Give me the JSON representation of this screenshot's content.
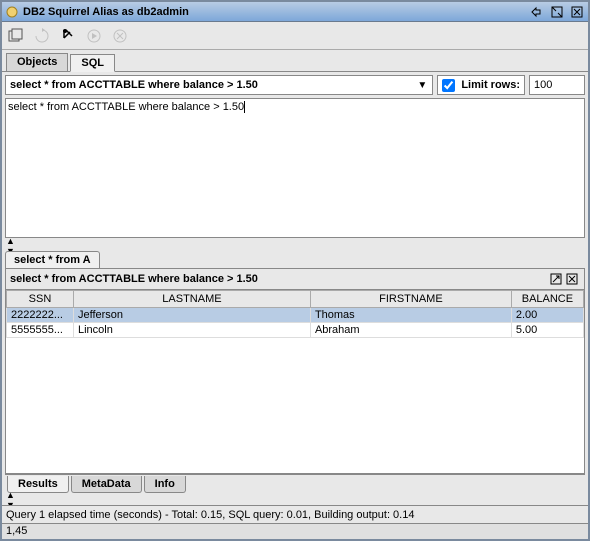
{
  "colors": {
    "title_gradient_top": "#b8cce4",
    "title_gradient_bottom": "#7da7d9",
    "border": "#7a8a9e",
    "panel_bg": "#e8e8e8",
    "row_selected": "#b8cce4",
    "white": "#ffffff"
  },
  "window": {
    "title": "DB2 Squirrel Alias as db2admin"
  },
  "tabs": {
    "objects": "Objects",
    "sql": "SQL"
  },
  "sql_bar": {
    "query": "select * from ACCTTABLE where balance > 1.50",
    "limit_label": "Limit rows:",
    "limit_value": "100",
    "limit_checked": true
  },
  "editor": {
    "content": "select * from ACCTTABLE where balance > 1.50"
  },
  "results": {
    "tab_label": "select * from A",
    "header_text": "select * from ACCTTABLE where balance > 1.50",
    "columns": [
      "SSN",
      "LASTNAME",
      "FIRSTNAME",
      "BALANCE"
    ],
    "col_widths": [
      "65px",
      "230px",
      "195px",
      "70px"
    ],
    "rows": [
      {
        "ssn": "2222222...",
        "lastname": "Jefferson",
        "firstname": "Thomas",
        "balance": "2.00",
        "selected": true
      },
      {
        "ssn": "5555555...",
        "lastname": "Lincoln",
        "firstname": "Abraham",
        "balance": "5.00",
        "selected": false
      }
    ],
    "bottom_tabs": {
      "results": "Results",
      "metadata": "MetaData",
      "info": "Info"
    }
  },
  "status": {
    "text": "Query 1 elapsed time (seconds) - Total: 0.15, SQL query: 0.01, Building output: 0.14"
  },
  "footer": {
    "text": "1,45"
  }
}
